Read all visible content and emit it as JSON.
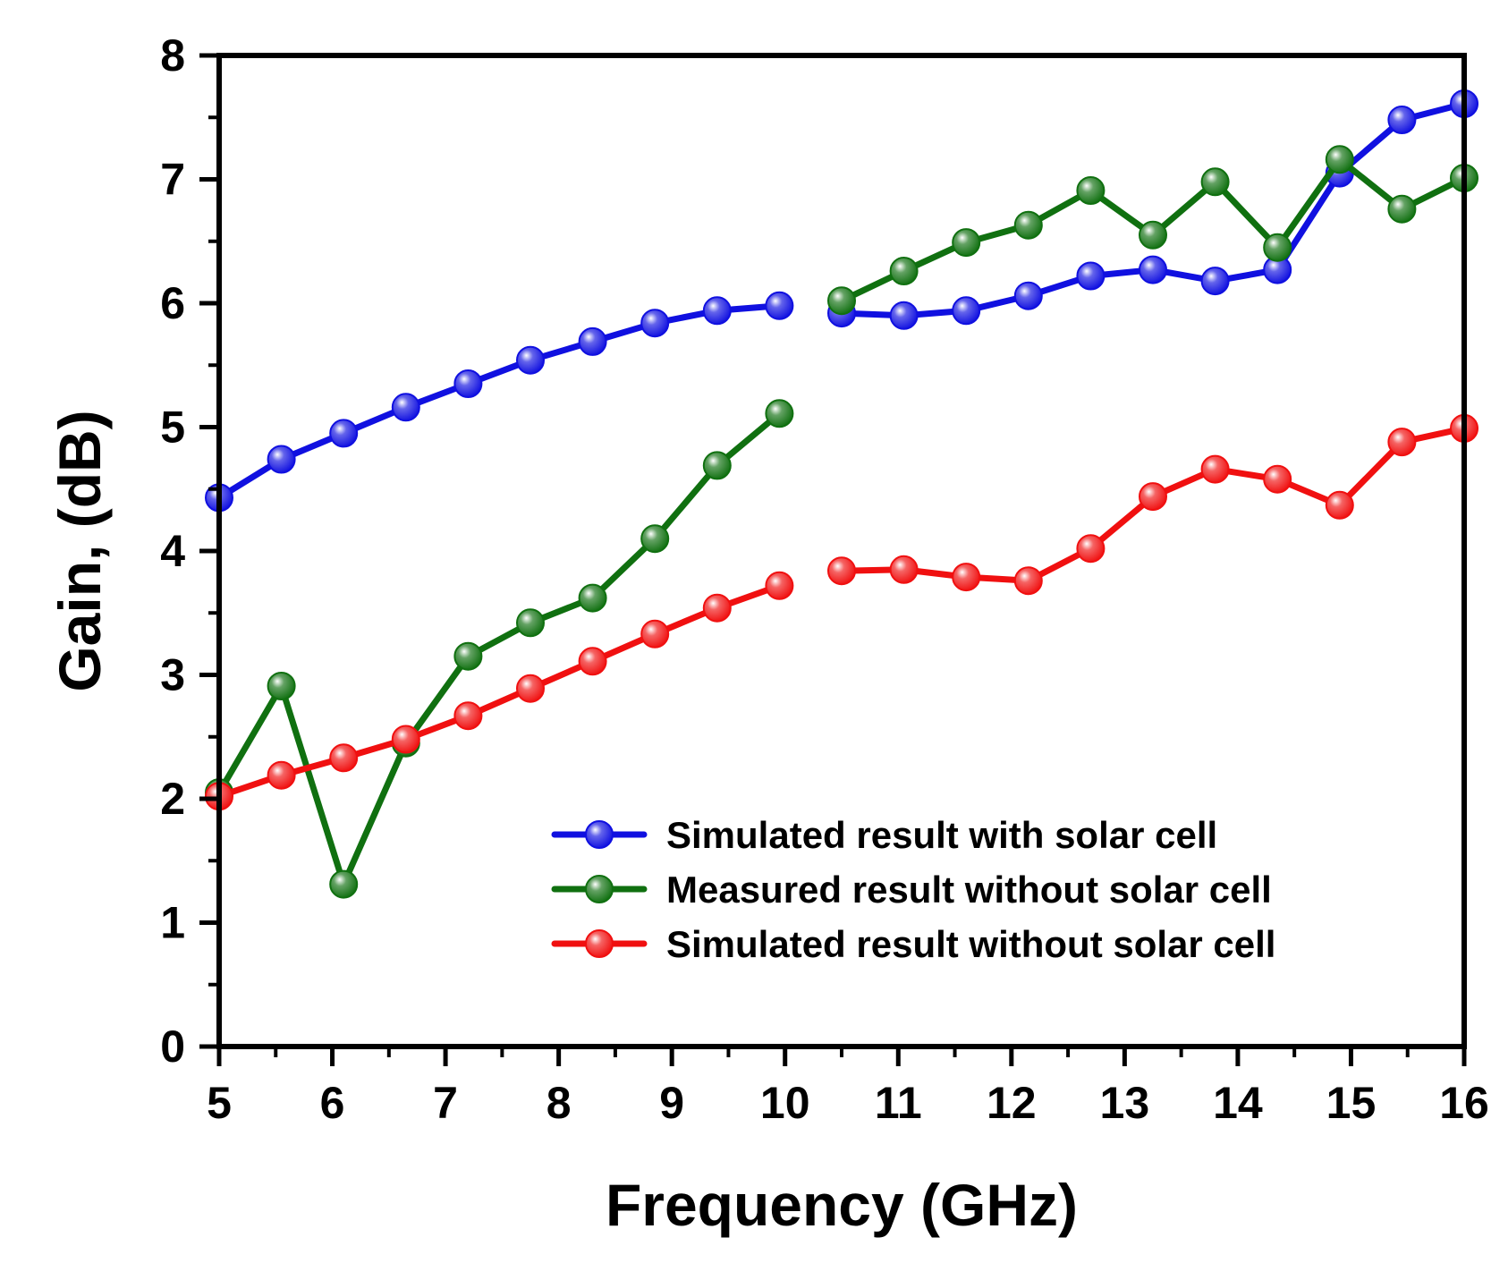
{
  "chart_data": {
    "type": "line",
    "title": "",
    "xlabel": "Frequency (GHz)",
    "ylabel": "Gain, (dB)",
    "xlim": [
      5,
      16
    ],
    "ylim": [
      0,
      8
    ],
    "xticks": [
      "5",
      "6",
      "7",
      "8",
      "9",
      "10",
      "11",
      "12",
      "13",
      "14",
      "15",
      "16"
    ],
    "yticks": [
      "0",
      "1",
      "2",
      "3",
      "4",
      "5",
      "6",
      "7",
      "8"
    ],
    "grid": false,
    "legend_position": "bottom-right",
    "segment_break_after_x": 10,
    "series": [
      {
        "name": "Simulated result with solar cell",
        "color": "#1010e0",
        "x": [
          5.0,
          5.55,
          6.1,
          6.65,
          7.2,
          7.75,
          8.3,
          8.85,
          9.4,
          9.95,
          10.5,
          11.05,
          11.6,
          12.15,
          12.7,
          13.25,
          13.8,
          14.35,
          14.9,
          15.45,
          16.0
        ],
        "values": [
          4.43,
          4.74,
          4.95,
          5.16,
          5.35,
          5.54,
          5.69,
          5.84,
          5.94,
          5.98,
          5.92,
          5.9,
          5.94,
          6.06,
          6.22,
          6.27,
          6.18,
          6.27,
          7.05,
          7.48,
          7.61
        ]
      },
      {
        "name": "Measured result without solar cell",
        "color": "#107010",
        "x": [
          5.0,
          5.55,
          6.1,
          6.65,
          7.2,
          7.75,
          8.3,
          8.85,
          9.4,
          9.95,
          10.5,
          11.05,
          11.6,
          12.15,
          12.7,
          13.25,
          13.8,
          14.35,
          14.9,
          15.45,
          16.0
        ],
        "values": [
          2.05,
          2.91,
          1.31,
          2.45,
          3.15,
          3.42,
          3.62,
          4.1,
          4.69,
          5.11,
          6.02,
          6.26,
          6.49,
          6.63,
          6.91,
          6.55,
          6.98,
          6.45,
          7.16,
          6.76,
          7.01
        ]
      },
      {
        "name": "Simulated result without solar cell",
        "color": "#f01010",
        "x": [
          5.0,
          5.55,
          6.1,
          6.65,
          7.2,
          7.75,
          8.3,
          8.85,
          9.4,
          9.95,
          10.5,
          11.05,
          11.6,
          12.15,
          12.7,
          13.25,
          13.8,
          14.35,
          14.9,
          15.45,
          16.0
        ],
        "values": [
          2.02,
          2.19,
          2.33,
          2.48,
          2.67,
          2.89,
          3.11,
          3.33,
          3.54,
          3.72,
          3.84,
          3.85,
          3.79,
          3.76,
          4.02,
          4.44,
          4.66,
          4.58,
          4.37,
          4.88,
          4.99
        ]
      }
    ]
  }
}
